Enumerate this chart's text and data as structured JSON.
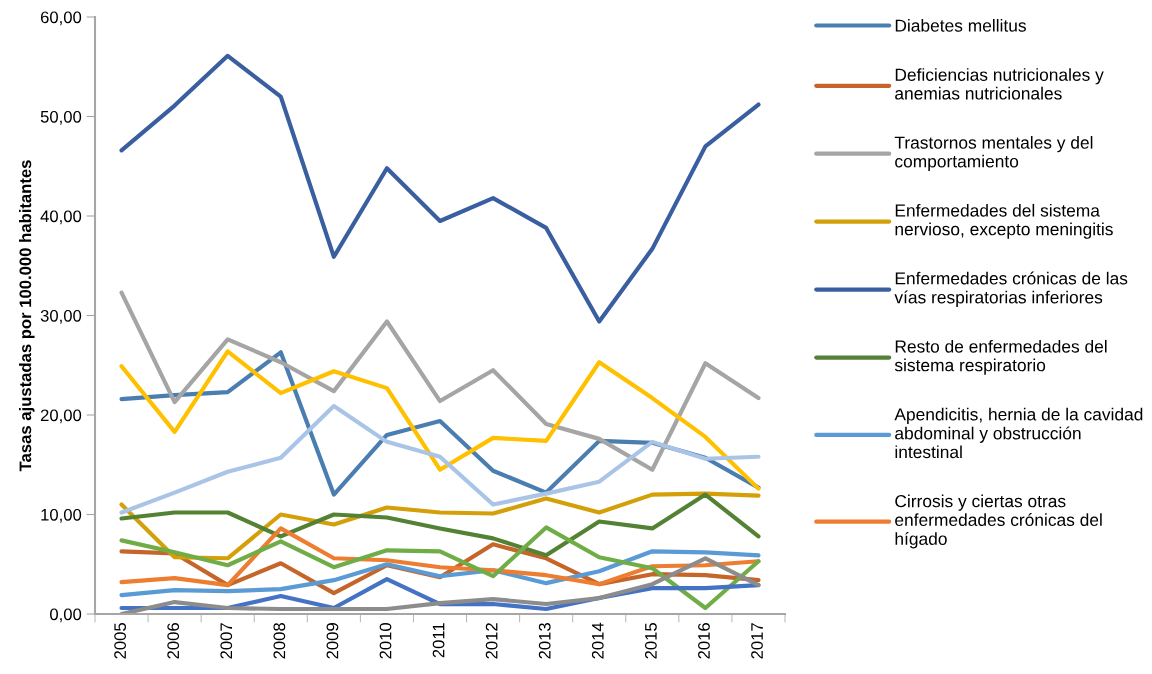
{
  "chart_data": {
    "type": "line",
    "ylabel": "Tasas ajustadas por 100.000 habitantes",
    "categories": [
      "2005",
      "2006",
      "2007",
      "2008",
      "2009",
      "2010",
      "2011",
      "2012",
      "2013",
      "2014",
      "2015",
      "2016",
      "2017"
    ],
    "ylim": [
      0,
      60
    ],
    "yticks": [
      {
        "value": 0,
        "label": "0,00"
      },
      {
        "value": 10,
        "label": "10,00"
      },
      {
        "value": 20,
        "label": "20,00"
      },
      {
        "value": 30,
        "label": "30,00"
      },
      {
        "value": 40,
        "label": "40,00"
      },
      {
        "value": 50,
        "label": "50,00"
      },
      {
        "value": 60,
        "label": "60,00"
      }
    ],
    "grid": false,
    "legend": "right",
    "marker": "none",
    "line_style": "solid",
    "series": [
      {
        "name": "Diabetes mellitus",
        "color": "#4a7eb0",
        "values": [
          21.6,
          22.0,
          22.3,
          26.3,
          12.0,
          18.0,
          19.4,
          14.4,
          12.2,
          17.4,
          17.2,
          15.7,
          12.7
        ]
      },
      {
        "name": "Deficiencias nutricionales y\nanemias nutricionales",
        "color": "#c5652a",
        "values": [
          6.3,
          6.1,
          2.9,
          5.1,
          2.1,
          4.9,
          3.7,
          7.0,
          5.6,
          3.0,
          4.0,
          3.9,
          3.4
        ]
      },
      {
        "name": "Trastornos mentales y del\ncomportamiento",
        "color": "#a5a5a5",
        "values": [
          32.3,
          21.3,
          27.6,
          25.3,
          22.4,
          29.4,
          21.4,
          24.5,
          19.1,
          17.6,
          14.5,
          25.2,
          21.7
        ]
      },
      {
        "name": "Enfermedades del sistema\nnervioso, excepto meningitis",
        "color": "#d4a00a",
        "values": [
          11.0,
          5.7,
          5.6,
          10.0,
          9.0,
          10.7,
          10.2,
          10.1,
          11.6,
          10.2,
          12.0,
          12.1,
          11.9
        ]
      },
      {
        "name": "Enfermedades crónicas de las\nvías respiratorias inferiores",
        "color": "#3a5fa0",
        "values": [
          46.6,
          51.1,
          56.1,
          52.0,
          35.9,
          44.8,
          39.5,
          41.8,
          38.8,
          29.4,
          36.7,
          47.0,
          51.2
        ]
      },
      {
        "name": "Resto de enfermedades del\nsistema respiratorio",
        "color": "#548235",
        "values": [
          9.6,
          10.2,
          10.2,
          7.8,
          10.0,
          9.7,
          8.6,
          7.6,
          5.9,
          9.3,
          8.6,
          12.0,
          7.8
        ]
      },
      {
        "name": "Apendicitis, hernia de la cavidad\nabdominal y obstrucción\nintestinal",
        "color": "#5b9bd5",
        "values": [
          1.9,
          2.4,
          2.3,
          2.5,
          3.4,
          5.0,
          3.8,
          4.4,
          3.1,
          4.3,
          6.3,
          6.2,
          5.9
        ]
      },
      {
        "name": "Cirrosis y ciertas otras\nenfermedades crónicas del\nhígado",
        "color": "#ed7d31",
        "values": [
          3.2,
          3.6,
          2.9,
          8.6,
          5.6,
          5.4,
          4.7,
          4.4,
          3.9,
          3.0,
          4.8,
          4.9,
          5.3
        ]
      },
      {
        "color": "#ffc000",
        "values": [
          24.9,
          18.3,
          26.4,
          22.2,
          24.4,
          22.7,
          14.5,
          17.7,
          17.4,
          25.3,
          21.7,
          17.8,
          12.6
        ]
      },
      {
        "color": "#a9c4e6",
        "values": [
          10.2,
          12.2,
          14.3,
          15.7,
          20.9,
          17.3,
          15.8,
          11.0,
          12.1,
          13.3,
          17.3,
          15.6,
          15.8
        ]
      },
      {
        "color": "#70ad47",
        "values": [
          7.4,
          6.2,
          4.9,
          7.3,
          4.7,
          6.4,
          6.3,
          3.8,
          8.7,
          5.7,
          4.6,
          0.6,
          5.3
        ]
      },
      {
        "color": "#4472c4",
        "values": [
          0.6,
          0.6,
          0.6,
          1.8,
          0.6,
          3.5,
          1.0,
          1.0,
          0.5,
          1.6,
          2.6,
          2.6,
          2.9
        ]
      },
      {
        "color": "#8c8c8c",
        "values": [
          0.0,
          1.2,
          0.6,
          0.5,
          0.5,
          0.5,
          1.1,
          1.5,
          1.0,
          1.6,
          3.0,
          5.6,
          2.9
        ]
      }
    ]
  }
}
